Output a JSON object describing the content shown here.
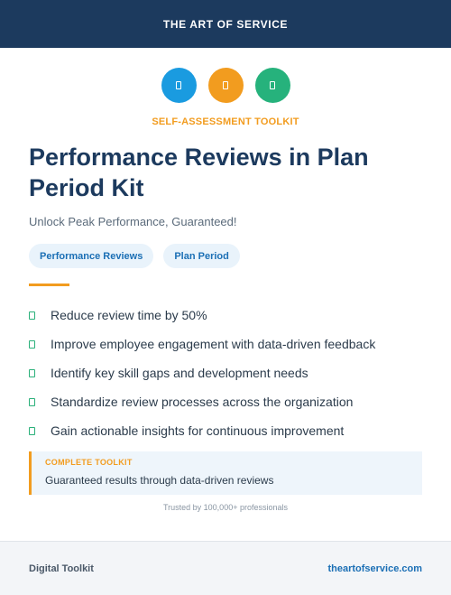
{
  "header": {
    "brand": "THE ART OF SERVICE"
  },
  "icons": [
    {
      "name": "document-icon",
      "color": "#1a9be0"
    },
    {
      "name": "document-icon",
      "color": "#f29c1f"
    },
    {
      "name": "document-icon",
      "color": "#26b27c"
    }
  ],
  "kicker": "SELF-ASSESSMENT TOOLKIT",
  "title": "Performance Reviews in Plan Period Kit",
  "subtitle": "Unlock Peak Performance, Guaranteed!",
  "tags": [
    "Performance Reviews",
    "Plan Period"
  ],
  "benefits": [
    "Reduce review time by 50%",
    "Improve employee engagement with data-driven feedback",
    "Identify key skill gaps and development needs",
    "Standardize review processes across the organization",
    "Gain actionable insights for continuous improvement"
  ],
  "callout": {
    "label": "COMPLETE TOOLKIT",
    "text": "Guaranteed results through data-driven reviews"
  },
  "trust": "Trusted by 100,000+ professionals",
  "footer": {
    "left": "Digital Toolkit",
    "right": "theartofservice.com"
  },
  "colors": {
    "navy": "#1c3a5e",
    "orange": "#f29c1f",
    "green": "#2ab07a",
    "blue": "#1b6fb5"
  }
}
